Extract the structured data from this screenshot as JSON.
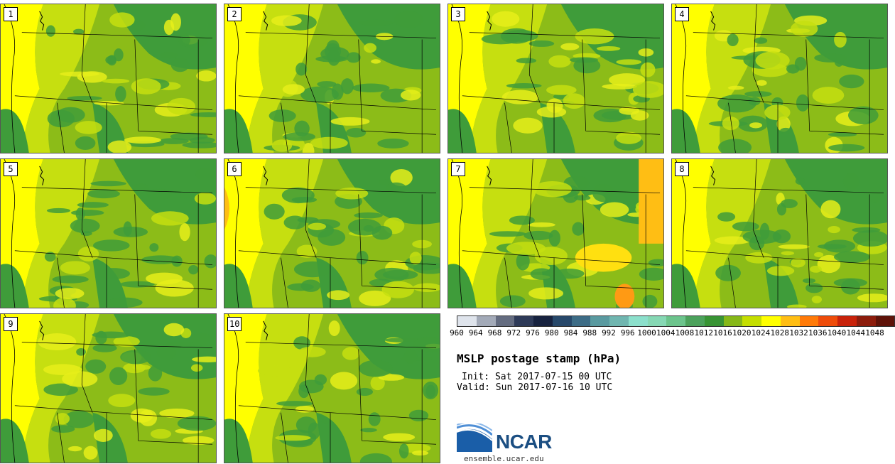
{
  "panels": [
    {
      "label": "1"
    },
    {
      "label": "2"
    },
    {
      "label": "3"
    },
    {
      "label": "4"
    },
    {
      "label": "5"
    },
    {
      "label": "6"
    },
    {
      "label": "7"
    },
    {
      "label": "8"
    },
    {
      "label": "9"
    },
    {
      "label": "10"
    }
  ],
  "legend": {
    "colors": [
      "#dfe4ec",
      "#a3aab8",
      "#646c80",
      "#2e3a58",
      "#17223f",
      "#27486a",
      "#3d6c86",
      "#5a9aa0",
      "#70b6b0",
      "#8ce0cc",
      "#86d8b4",
      "#6cc48c",
      "#4ca25c",
      "#389434",
      "#86b818",
      "#c4de00",
      "#ffff00",
      "#ffbe14",
      "#ff7a08",
      "#ee4c0a",
      "#c8220a",
      "#8c1c0c",
      "#5e1208"
    ],
    "ticks": [
      "960",
      "964",
      "968",
      "972",
      "976",
      "980",
      "984",
      "988",
      "992",
      "996",
      "1000",
      "1004",
      "1008",
      "1012",
      "1016",
      "1020",
      "1024",
      "1028",
      "1032",
      "1036",
      "1040",
      "1044",
      "1048"
    ]
  },
  "title": "MSLP postage stamp (hPa)",
  "init": "Init: Sat 2017-07-15 00 UTC",
  "valid": "Valid: Sun 2017-07-16 10 UTC",
  "logo": {
    "name": "NCAR",
    "url": "ensemble.ucar.edu",
    "icon": "ncar-logo-icon"
  }
}
